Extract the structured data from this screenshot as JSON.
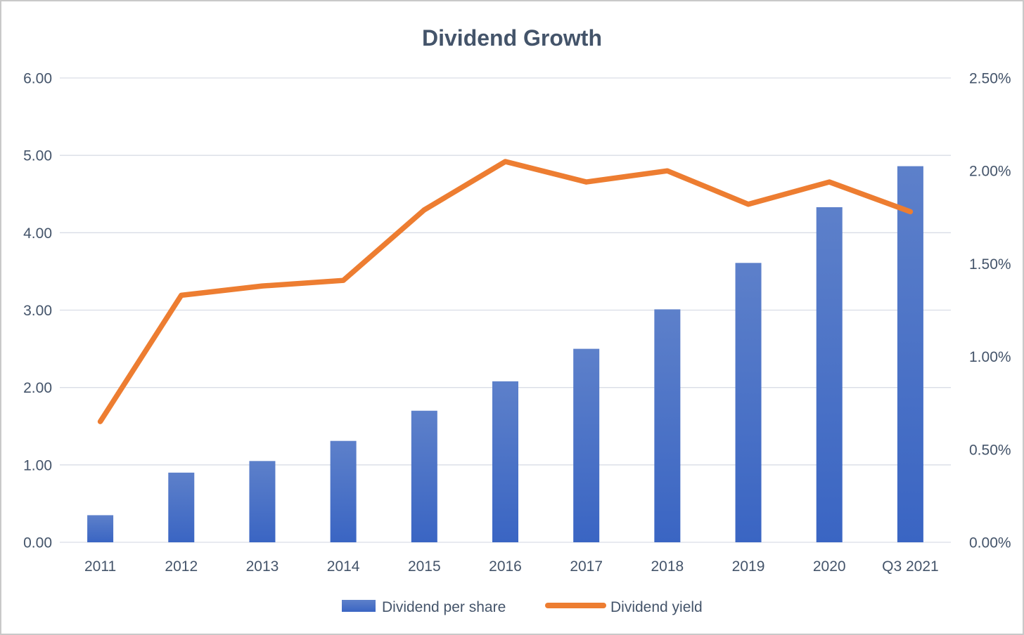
{
  "title": "Dividend Growth",
  "legend": {
    "bar_label": "Dividend per share",
    "line_label": "Dividend yield"
  },
  "chart_data": {
    "type": "combo",
    "title": "Dividend Growth",
    "categories": [
      "2011",
      "2012",
      "2013",
      "2014",
      "2015",
      "2016",
      "2017",
      "2018",
      "2019",
      "2020",
      "Q3 2021"
    ],
    "series": [
      {
        "name": "Dividend per share",
        "type": "bar",
        "axis": "left",
        "values": [
          0.35,
          0.9,
          1.05,
          1.31,
          1.7,
          2.08,
          2.5,
          3.01,
          3.61,
          4.33,
          4.86
        ]
      },
      {
        "name": "Dividend yield",
        "type": "line",
        "axis": "right",
        "values_percent": [
          0.65,
          1.33,
          1.38,
          1.41,
          1.79,
          2.05,
          1.94,
          2.0,
          1.82,
          1.94,
          1.78
        ]
      }
    ],
    "left_axis": {
      "min": 0,
      "max": 6,
      "step": 1,
      "tick_labels": [
        "6.00",
        "5.00",
        "4.00",
        "3.00",
        "2.00",
        "1.00",
        "0.00"
      ]
    },
    "right_axis": {
      "min": 0,
      "max": 2.5,
      "step": 0.5,
      "tick_labels": [
        "2.50%",
        "2.00%",
        "1.50%",
        "1.00%",
        "0.50%",
        "0.00%"
      ]
    },
    "grid": true,
    "legend_position": "bottom"
  },
  "colors": {
    "bar_gradient_top": "#5d80ca",
    "bar_gradient_bottom": "#3a65c3",
    "line": "#ED7D31",
    "text": "#44546A",
    "gridline": "#D9DDE6",
    "frame_border": "#C9C9C9",
    "background": "#FFFFFF"
  }
}
